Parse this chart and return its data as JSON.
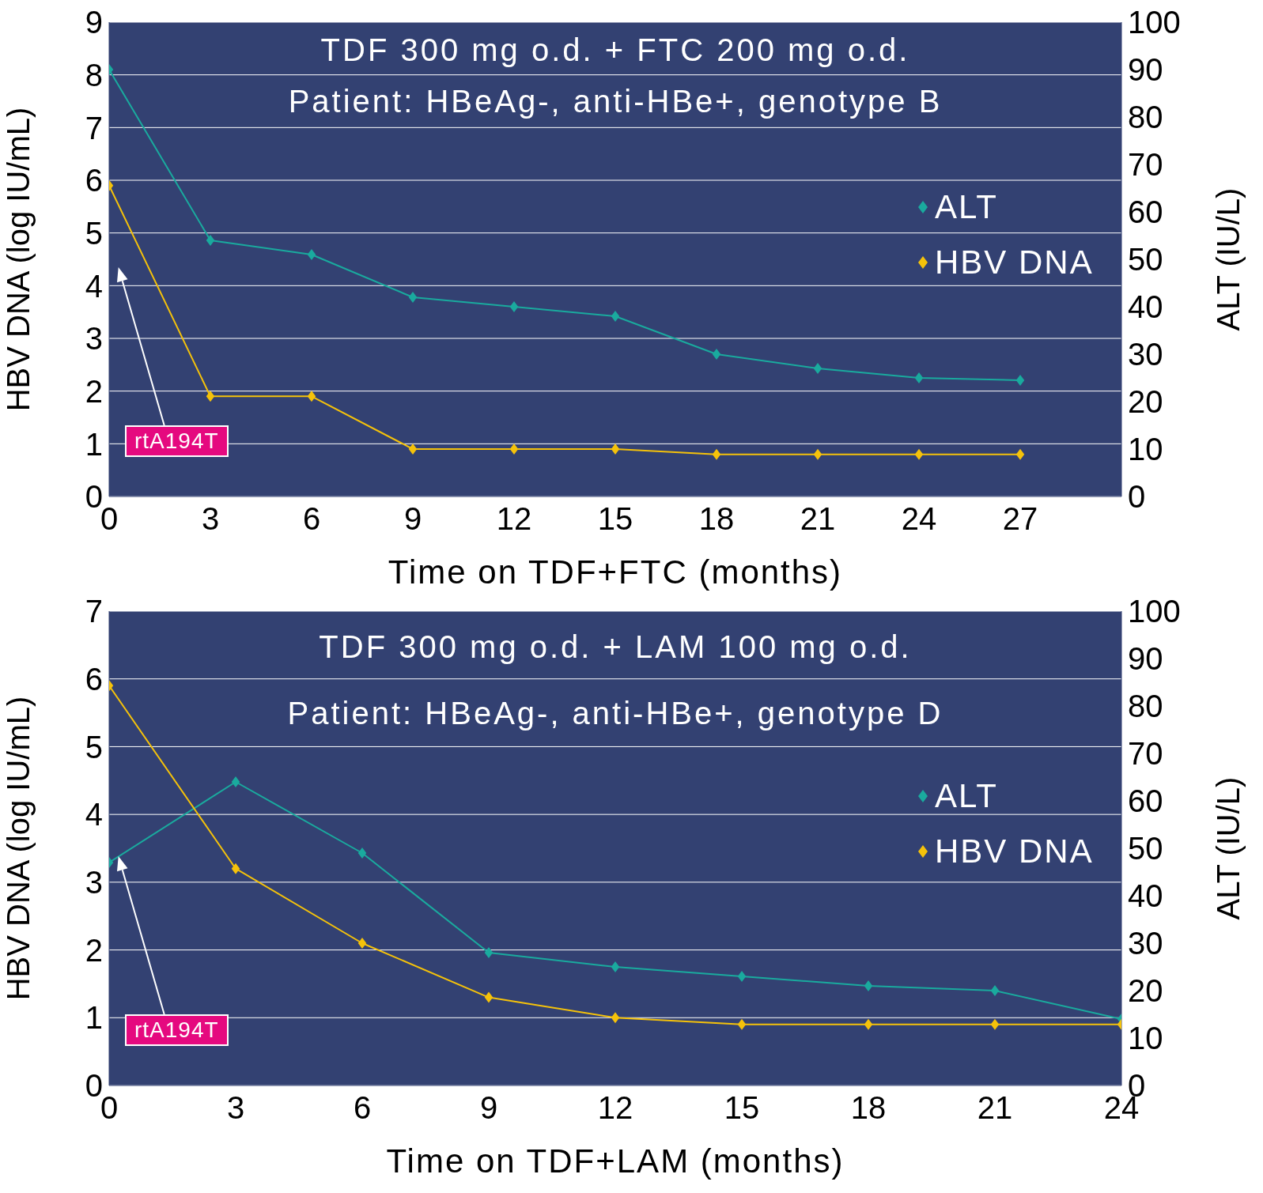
{
  "chart_data": [
    {
      "type": "line",
      "title": "TDF 300 mg o.d. + FTC 200 mg o.d.",
      "subtitle": "Patient: HBeAg-, anti-HBe+, genotype B",
      "xlabel": "Time on TDF+FTC (months)",
      "ylabel": "HBV DNA (log IU/mL)",
      "y2label": "ALT (IU/L)",
      "x": [
        0,
        3,
        6,
        9,
        12,
        15,
        18,
        21,
        24,
        27
      ],
      "series": [
        {
          "name": "ALT",
          "color": "#1aaa9e",
          "axis": "y2",
          "values": [
            90,
            54,
            51,
            42,
            40,
            38,
            30,
            27,
            25,
            24.5
          ]
        },
        {
          "name": "HBV DNA",
          "color": "#f5c20a",
          "values": [
            5.9,
            1.9,
            1.9,
            0.9,
            0.9,
            0.9,
            0.8,
            0.8,
            0.8,
            0.8
          ]
        }
      ],
      "xlim": [
        0,
        30
      ],
      "xticks": [
        0,
        3,
        6,
        9,
        12,
        15,
        18,
        21,
        24,
        27
      ],
      "ylim": [
        0,
        9
      ],
      "yticks": [
        0,
        1,
        2,
        3,
        4,
        5,
        6,
        7,
        8,
        9
      ],
      "y2lim": [
        0,
        100
      ],
      "y2ticks": [
        0,
        10,
        20,
        30,
        40,
        50,
        60,
        70,
        80,
        90,
        100
      ],
      "grid": "y",
      "legend": "right",
      "marker": "diamond",
      "line_style": "solid",
      "annotations": [
        "rtA194T"
      ]
    },
    {
      "type": "line",
      "title": "TDF 300 mg o.d. + LAM 100 mg o.d.",
      "subtitle": "Patient: HBeAg-, anti-HBe+, genotype D",
      "xlabel": "Time on TDF+LAM (months)",
      "ylabel": "HBV DNA (log IU/mL)",
      "y2label": "ALT (IU/L)",
      "x": [
        0,
        3,
        6,
        9,
        12,
        15,
        18,
        21,
        24
      ],
      "series": [
        {
          "name": "ALT",
          "color": "#1aaa9e",
          "axis": "y2",
          "values": [
            47,
            64,
            49,
            28,
            25,
            23,
            21,
            20,
            14
          ]
        },
        {
          "name": "HBV DNA",
          "color": "#f5c20a",
          "values": [
            5.9,
            3.2,
            2.1,
            1.3,
            1.0,
            0.9,
            0.9,
            0.9,
            0.9
          ]
        }
      ],
      "xlim": [
        0,
        24
      ],
      "xticks": [
        0,
        3,
        6,
        9,
        12,
        15,
        18,
        21,
        24
      ],
      "ylim": [
        0,
        7
      ],
      "yticks": [
        0,
        1,
        2,
        3,
        4,
        5,
        6,
        7
      ],
      "y2lim": [
        0,
        100
      ],
      "y2ticks": [
        0,
        10,
        20,
        30,
        40,
        50,
        60,
        70,
        80,
        90,
        100
      ],
      "grid": "y",
      "legend": "right",
      "marker": "diamond",
      "line_style": "solid",
      "annotations": [
        "rtA194T"
      ]
    }
  ]
}
